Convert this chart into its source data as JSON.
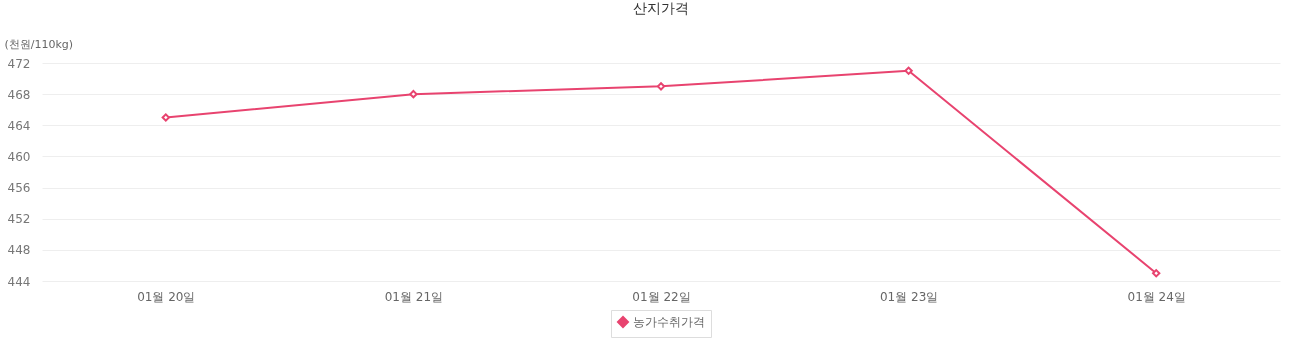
{
  "chart_data": {
    "type": "line",
    "title": "산지가격",
    "ylabel": "(천원/110kg)",
    "categories": [
      "01월 20일",
      "01월 21일",
      "01월 22일",
      "01월 23일",
      "01월 24일"
    ],
    "series": [
      {
        "name": "농가수취가격",
        "color": "#e8436f",
        "values": [
          465,
          468,
          469,
          471,
          445
        ]
      }
    ],
    "ylim": [
      444,
      472
    ],
    "yticks": [
      444,
      448,
      452,
      456,
      460,
      464,
      468,
      472
    ],
    "grid": "y",
    "legend": "bottom",
    "marker": "diamond",
    "line_style": "solid"
  }
}
